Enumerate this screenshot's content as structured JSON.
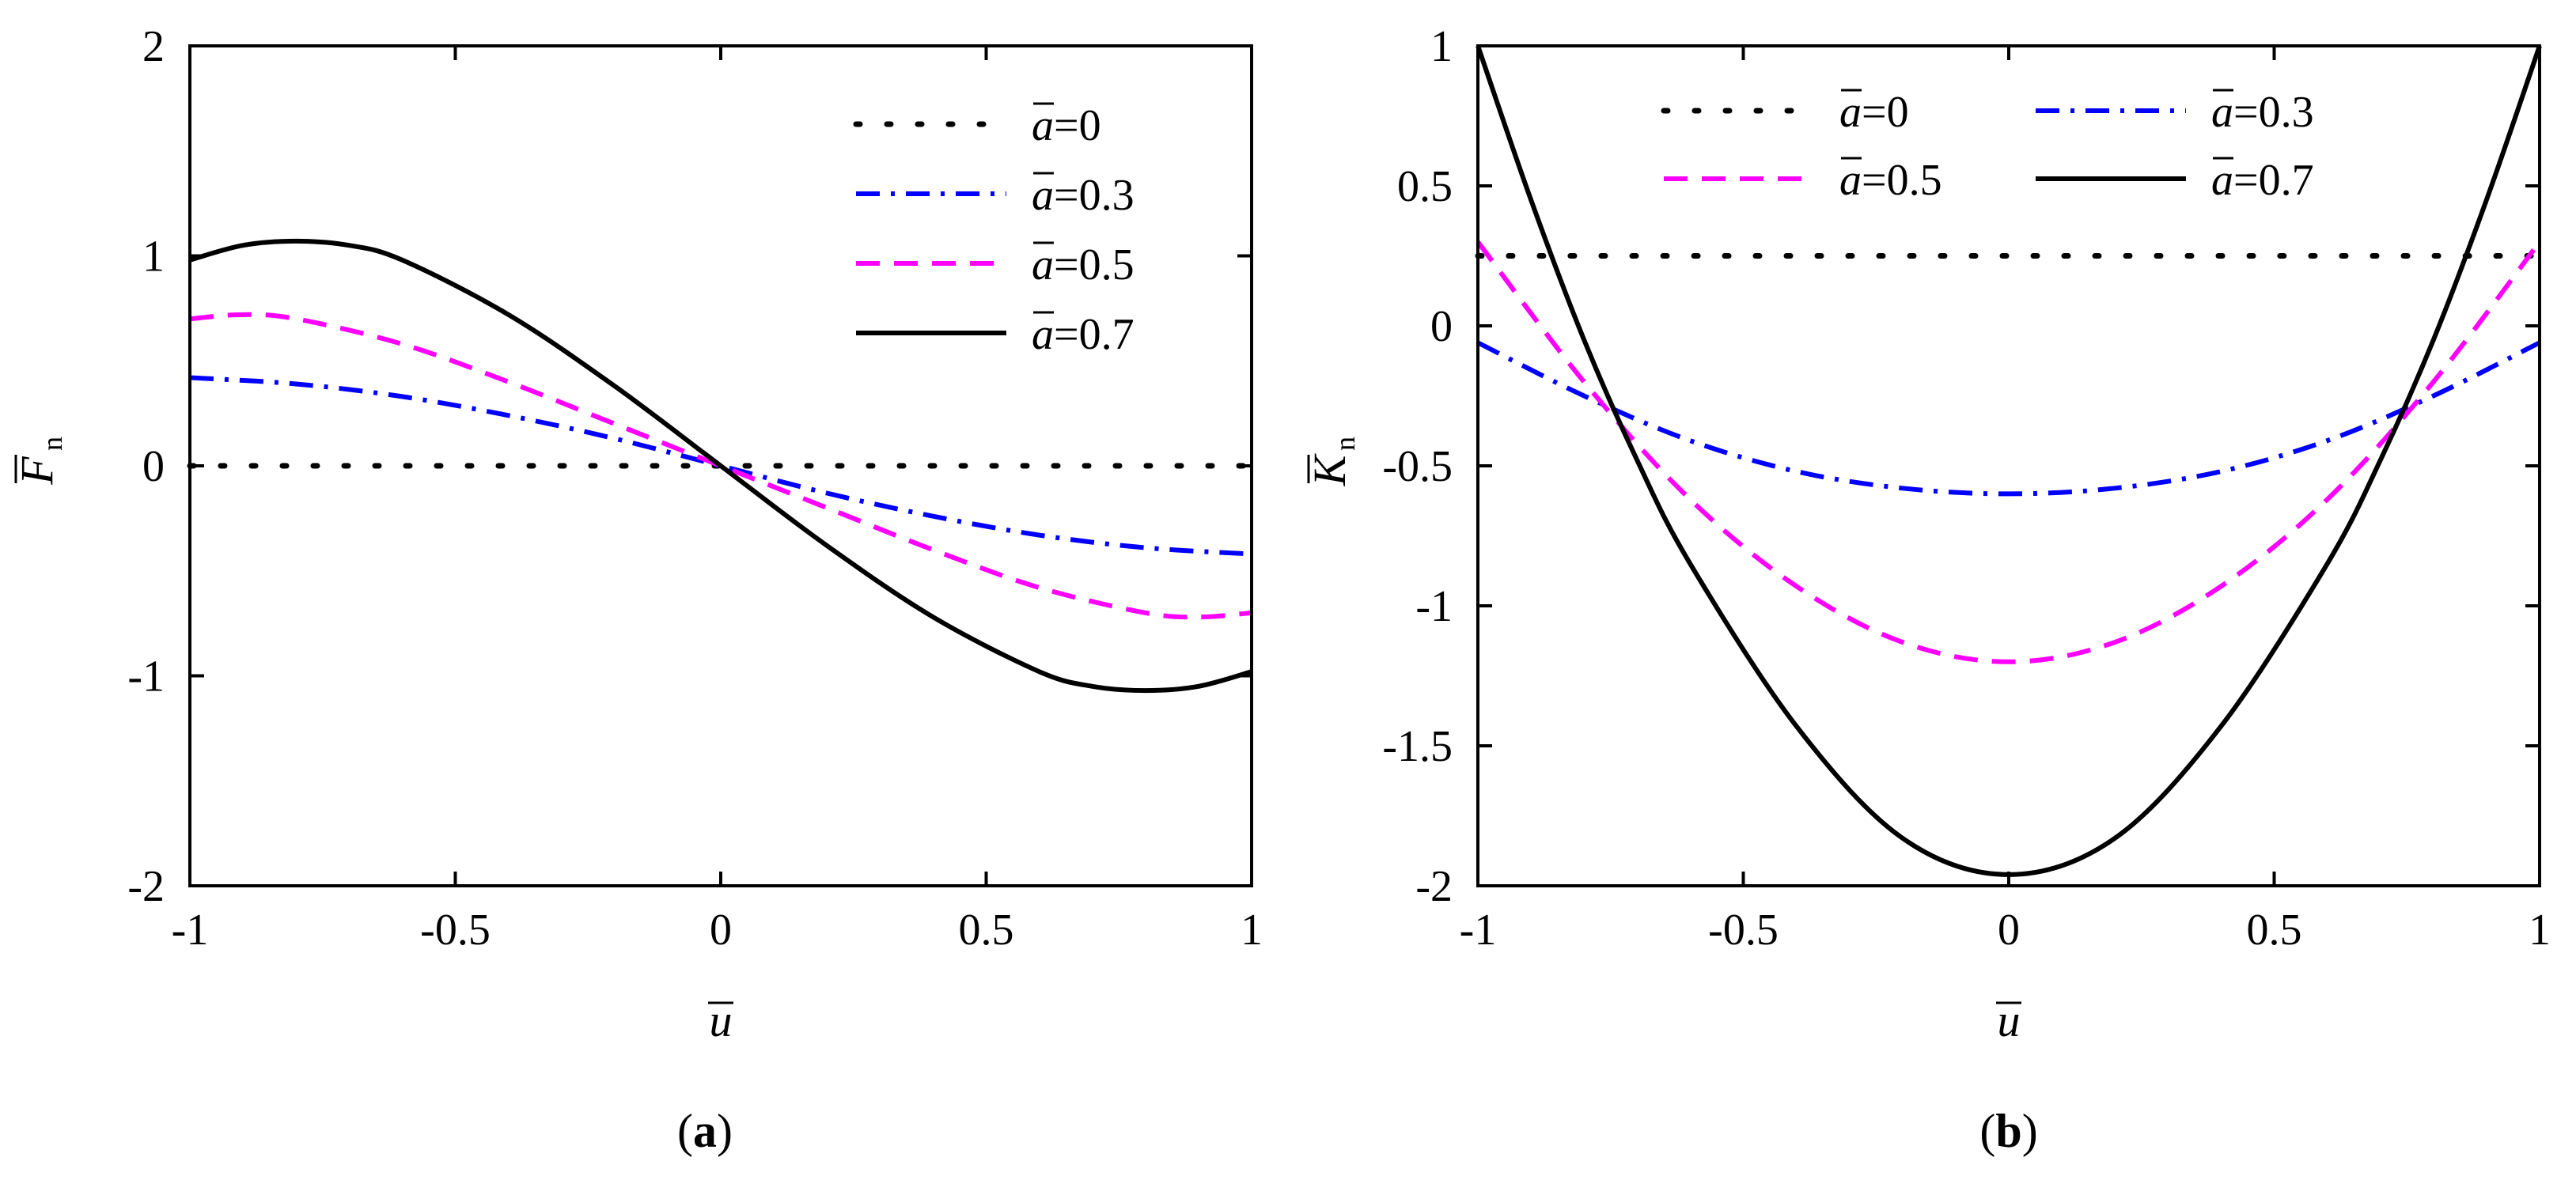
{
  "chart_data": [
    {
      "type": "line",
      "panel_label": "a",
      "xlabel": "u",
      "ylabel": "F",
      "ylabel_subscript": "n",
      "xlim": [
        -1,
        1
      ],
      "ylim": [
        -2,
        2
      ],
      "xticks": [
        "-1",
        "-0.5",
        "0",
        "0.5",
        "1"
      ],
      "yticks": [
        "-2",
        "-1",
        "0",
        "1",
        "2"
      ],
      "legend_position": "top-right",
      "legend_columns": 1,
      "series": [
        {
          "name": "a=0",
          "legend_var": "a",
          "legend_value": "=0",
          "color": "#000000",
          "style": "dotted",
          "x": [
            -1,
            -0.8,
            -0.6,
            -0.4,
            -0.2,
            0,
            0.2,
            0.4,
            0.6,
            0.8,
            1
          ],
          "y": [
            0,
            0,
            0,
            0,
            0,
            0,
            0,
            0,
            0,
            0,
            0
          ]
        },
        {
          "name": "a=0.3",
          "legend_var": "a",
          "legend_value": "=0.3",
          "color": "#0000ff",
          "style": "dashdot",
          "x": [
            -1,
            -0.8,
            -0.6,
            -0.4,
            -0.2,
            0,
            0.2,
            0.4,
            0.6,
            0.8,
            1
          ],
          "y": [
            0.42,
            0.39,
            0.33,
            0.24,
            0.13,
            0,
            -0.13,
            -0.24,
            -0.33,
            -0.39,
            -0.42
          ]
        },
        {
          "name": "a=0.5",
          "legend_var": "a",
          "legend_value": "=0.5",
          "color": "#ff00ff",
          "style": "dashed",
          "x": [
            -1,
            -0.9,
            -0.8,
            -0.6,
            -0.4,
            -0.2,
            0,
            0.2,
            0.4,
            0.6,
            0.8,
            0.9,
            1
          ],
          "y": [
            0.7,
            0.72,
            0.7,
            0.58,
            0.4,
            0.2,
            0,
            -0.2,
            -0.4,
            -0.58,
            -0.7,
            -0.72,
            -0.7
          ]
        },
        {
          "name": "a=0.7",
          "legend_var": "a",
          "legend_value": "=0.7",
          "color": "#000000",
          "style": "solid",
          "x": [
            -1,
            -0.9,
            -0.8,
            -0.7,
            -0.6,
            -0.4,
            -0.2,
            0,
            0.2,
            0.4,
            0.6,
            0.7,
            0.8,
            0.9,
            1
          ],
          "y": [
            0.98,
            1.05,
            1.07,
            1.05,
            0.98,
            0.72,
            0.38,
            0,
            -0.38,
            -0.72,
            -0.98,
            -1.05,
            -1.07,
            -1.05,
            -0.98
          ]
        }
      ]
    },
    {
      "type": "line",
      "panel_label": "b",
      "xlabel": "u",
      "ylabel": "K",
      "ylabel_subscript": "n",
      "xlim": [
        -1,
        1
      ],
      "ylim": [
        -2,
        1
      ],
      "xticks": [
        "-1",
        "-0.5",
        "0",
        "0.5",
        "1"
      ],
      "yticks": [
        "-2",
        "-1.5",
        "-1",
        "-0.5",
        "0",
        "0.5",
        "1"
      ],
      "legend_position": "top",
      "legend_columns": 2,
      "series": [
        {
          "name": "a=0",
          "legend_var": "a",
          "legend_value": "=0",
          "color": "#000000",
          "style": "dotted",
          "x": [
            -1,
            -0.5,
            0,
            0.5,
            1
          ],
          "y": [
            0.25,
            0.25,
            0.25,
            0.25,
            0.25
          ]
        },
        {
          "name": "a=0.3",
          "legend_var": "a",
          "legend_value": "=0.3",
          "color": "#0000ff",
          "style": "dashdot",
          "x": [
            -1,
            -0.8,
            -0.6,
            -0.4,
            -0.2,
            0,
            0.2,
            0.4,
            0.6,
            0.8,
            1
          ],
          "y": [
            -0.06,
            -0.25,
            -0.41,
            -0.52,
            -0.58,
            -0.6,
            -0.58,
            -0.52,
            -0.41,
            -0.25,
            -0.06
          ]
        },
        {
          "name": "a=0.5",
          "legend_var": "a",
          "legend_value": "=0.5",
          "color": "#ff00ff",
          "style": "dashed",
          "x": [
            -1,
            -0.8,
            -0.6,
            -0.4,
            -0.2,
            0,
            0.2,
            0.4,
            0.6,
            0.8,
            1
          ],
          "y": [
            0.3,
            -0.2,
            -0.62,
            -0.93,
            -1.13,
            -1.2,
            -1.13,
            -0.93,
            -0.62,
            -0.2,
            0.3
          ]
        },
        {
          "name": "a=0.7",
          "legend_var": "a",
          "legend_value": "=0.7",
          "color": "#000000",
          "style": "solid",
          "x": [
            -1,
            -0.9,
            -0.8,
            -0.7,
            -0.6,
            -0.4,
            -0.2,
            0,
            0.2,
            0.4,
            0.6,
            0.7,
            0.8,
            0.9,
            1
          ],
          "y": [
            1.0,
            0.45,
            -0.05,
            -0.48,
            -0.85,
            -1.43,
            -1.83,
            -1.96,
            -1.83,
            -1.43,
            -0.85,
            -0.48,
            -0.05,
            0.45,
            1.0
          ]
        }
      ]
    }
  ]
}
